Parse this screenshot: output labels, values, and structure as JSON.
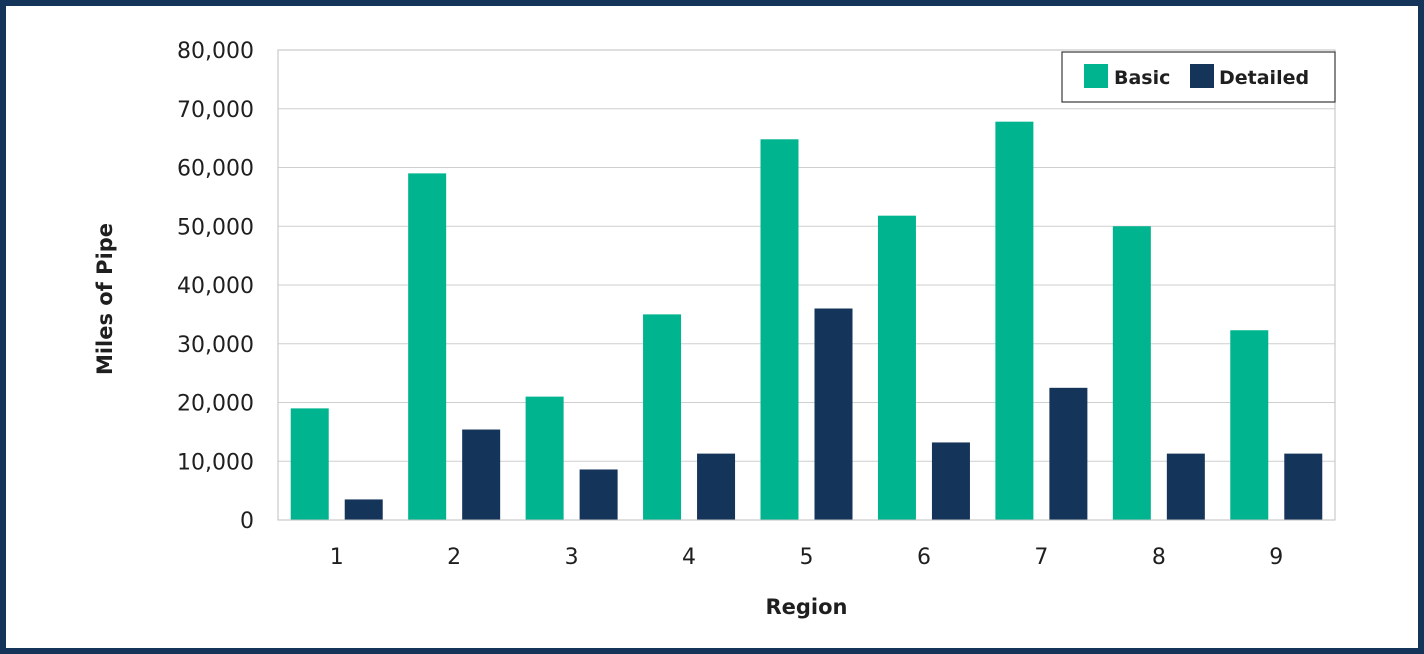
{
  "chart_data": {
    "type": "bar",
    "title": "",
    "xlabel": "Region",
    "ylabel": "Miles of Pipe",
    "categories": [
      "1",
      "2",
      "3",
      "4",
      "5",
      "6",
      "7",
      "8",
      "9"
    ],
    "series": [
      {
        "name": "Basic",
        "color": "#00b48f",
        "values": [
          19000,
          59000,
          21000,
          35000,
          64800,
          51800,
          67800,
          50000,
          32300
        ]
      },
      {
        "name": "Detailed",
        "color": "#15345a",
        "values": [
          3500,
          15400,
          8600,
          11300,
          36000,
          13200,
          22500,
          11300,
          11300
        ]
      }
    ],
    "ylim": [
      0,
      80000
    ],
    "yticks": [
      0,
      10000,
      20000,
      30000,
      40000,
      50000,
      60000,
      70000,
      80000
    ],
    "ytick_labels": [
      "0",
      "10,000",
      "20,000",
      "30,000",
      "40,000",
      "50,000",
      "60,000",
      "70,000",
      "80,000"
    ],
    "grid": true,
    "legend_position": "top-right",
    "frame_color": "#15345a",
    "gridline_color": "#cfcfcf"
  }
}
